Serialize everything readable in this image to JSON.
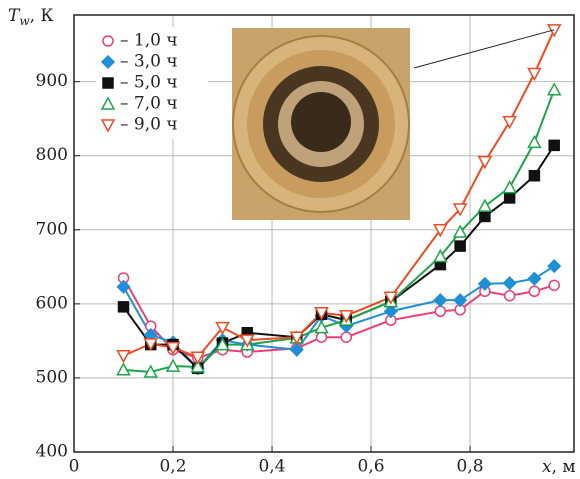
{
  "chart_data": {
    "type": "line",
    "y_label_symbol": "T",
    "y_label_subscript": "w",
    "y_label_unit": ", К",
    "x_label_symbol": "x",
    "x_label_unit": ", м",
    "xlim": [
      0,
      1.01
    ],
    "ylim": [
      400,
      990
    ],
    "xticks": [
      0,
      {
        "value": 0.2,
        "label": "0,2"
      },
      {
        "value": 0.4,
        "label": "0,4"
      },
      {
        "value": 0.6,
        "label": "0,6"
      },
      {
        "value": 0.8,
        "label": "0,8"
      }
    ],
    "yticks": [
      400,
      500,
      600,
      700,
      800,
      900
    ],
    "grid": true,
    "legend": "upper left",
    "x": [
      0.1,
      0.155,
      0.2,
      0.25,
      0.3,
      0.35,
      0.45,
      0.5,
      0.55,
      0.64,
      0.74,
      0.78,
      0.83,
      0.88,
      0.93,
      0.97
    ],
    "series": [
      {
        "name": "– 1,0 ч",
        "color": "#e8407a",
        "marker": "circle",
        "values": [
          635,
          570,
          538,
          527,
          538,
          535,
          540,
          555,
          555,
          578,
          590,
          592,
          617,
          611,
          617,
          625
        ]
      },
      {
        "name": "– 3,0 ч",
        "color": "#1f8fd6",
        "marker": "diamond",
        "values": [
          623,
          558,
          548,
          513,
          551,
          545,
          538,
          584,
          570,
          590,
          605,
          605,
          627,
          628,
          634,
          651
        ]
      },
      {
        "name": "– 5,0 ч",
        "color": "#111111",
        "marker": "square",
        "values": [
          596,
          545,
          545,
          513,
          547,
          561,
          555,
          586,
          578,
          603,
          653,
          678,
          718,
          743,
          773,
          814
        ]
      },
      {
        "name": "– 7,0 ч",
        "color": "#1ea54b",
        "marker": "triangle-up",
        "values": [
          511,
          508,
          516,
          515,
          545,
          545,
          554,
          568,
          578,
          603,
          664,
          697,
          732,
          757,
          818,
          889
        ]
      },
      {
        "name": "– 9,0 ч",
        "color": "#ef4a23",
        "marker": "triangle-down",
        "values": [
          530,
          546,
          541,
          528,
          568,
          551,
          555,
          588,
          584,
          609,
          700,
          728,
          792,
          846,
          911,
          970
        ]
      }
    ]
  }
}
